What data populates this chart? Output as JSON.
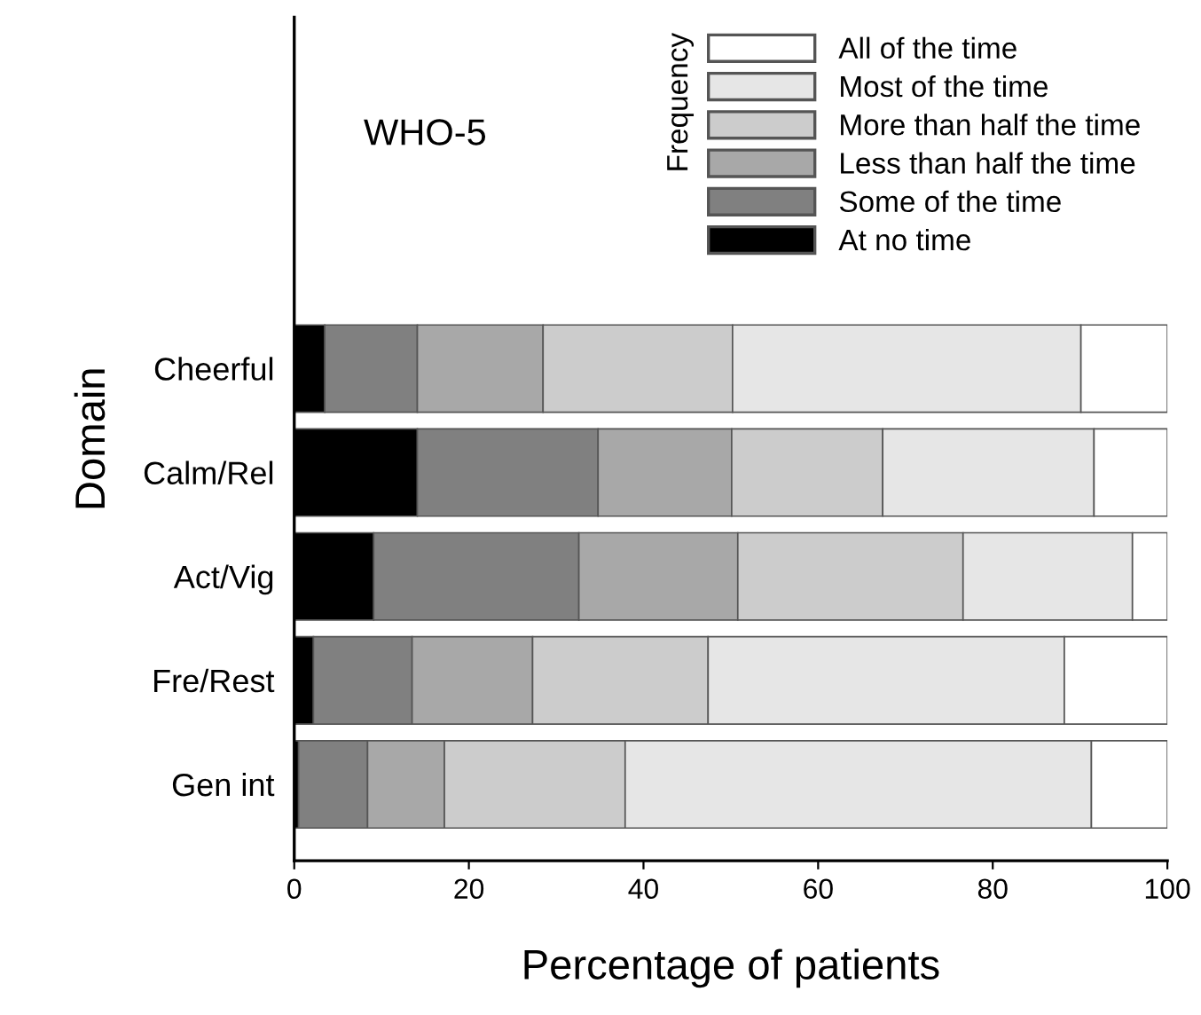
{
  "chart_data": {
    "type": "bar",
    "orientation": "horizontal",
    "stacked": true,
    "title": "WHO-5",
    "xlabel": "Percentage of patients",
    "ylabel": "Domain",
    "legend_title": "Frequency",
    "legend": "top right",
    "categories": [
      "Cheerful",
      "Calm/Rel",
      "Act/Vig",
      "Fre/Rest",
      "Gen int"
    ],
    "series": [
      {
        "name": "At no time",
        "color": "#000000",
        "values": [
          3.5,
          14.1,
          9.1,
          2.2,
          0.5
        ]
      },
      {
        "name": "Some of the time",
        "color": "#808080",
        "values": [
          10.6,
          20.7,
          23.5,
          11.3,
          7.9
        ]
      },
      {
        "name": "Less than half the time",
        "color": "#a8a8a8",
        "values": [
          14.4,
          15.3,
          18.2,
          13.8,
          8.8
        ]
      },
      {
        "name": "More than half the time",
        "color": "#cccccc",
        "values": [
          21.7,
          17.3,
          25.8,
          20.1,
          20.7
        ]
      },
      {
        "name": "Most of the time",
        "color": "#e6e6e6",
        "values": [
          39.9,
          24.2,
          19.4,
          40.8,
          53.4
        ]
      },
      {
        "name": "All of the time",
        "color": "#ffffff",
        "values": [
          9.9,
          8.4,
          4.0,
          11.8,
          8.7
        ]
      }
    ],
    "xlim": [
      0,
      100
    ],
    "xticks": [
      0,
      20,
      40,
      60,
      80,
      100
    ],
    "grid": false
  }
}
